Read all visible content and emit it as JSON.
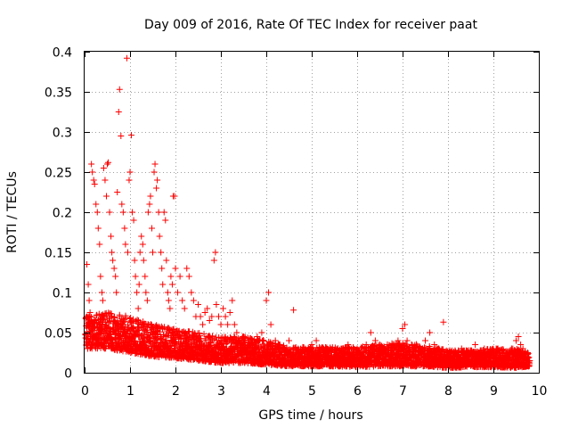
{
  "chart_data": {
    "type": "scatter",
    "title": "Day 009 of 2016, Rate Of TEC Index for receiver paat",
    "xlabel": "GPS time / hours",
    "ylabel": "ROTI / TECUs",
    "xlim": [
      0,
      10
    ],
    "ylim": [
      0,
      0.4
    ],
    "xticks": [
      0,
      1,
      2,
      3,
      4,
      5,
      6,
      7,
      8,
      9,
      10
    ],
    "yticks": [
      0,
      0.05,
      0.1,
      0.15,
      0.2,
      0.25,
      0.3,
      0.35,
      0.4
    ],
    "xtick_labels": [
      "0",
      "1",
      "2",
      "3",
      "4",
      "5",
      "6",
      "7",
      "8",
      "9",
      "10"
    ],
    "ytick_labels": [
      "0",
      "0.05",
      "0.1",
      "0.15",
      "0.2",
      "0.25",
      "0.3",
      "0.35",
      "0.4"
    ],
    "grid": true,
    "marker": "plus",
    "marker_color": "#ff0000",
    "series": [
      {
        "name": "ROTI",
        "points": [
          [
            0.05,
            0.135
          ],
          [
            0.08,
            0.11
          ],
          [
            0.1,
            0.09
          ],
          [
            0.12,
            0.075
          ],
          [
            0.15,
            0.26
          ],
          [
            0.17,
            0.25
          ],
          [
            0.2,
            0.24
          ],
          [
            0.22,
            0.235
          ],
          [
            0.25,
            0.21
          ],
          [
            0.28,
            0.2
          ],
          [
            0.3,
            0.18
          ],
          [
            0.33,
            0.16
          ],
          [
            0.35,
            0.12
          ],
          [
            0.38,
            0.1
          ],
          [
            0.4,
            0.09
          ],
          [
            0.42,
            0.255
          ],
          [
            0.45,
            0.24
          ],
          [
            0.48,
            0.22
          ],
          [
            0.5,
            0.26
          ],
          [
            0.52,
            0.262
          ],
          [
            0.55,
            0.2
          ],
          [
            0.58,
            0.17
          ],
          [
            0.6,
            0.15
          ],
          [
            0.62,
            0.14
          ],
          [
            0.65,
            0.13
          ],
          [
            0.68,
            0.12
          ],
          [
            0.7,
            0.1
          ],
          [
            0.72,
            0.225
          ],
          [
            0.75,
            0.325
          ],
          [
            0.77,
            0.353
          ],
          [
            0.8,
            0.295
          ],
          [
            0.82,
            0.21
          ],
          [
            0.85,
            0.2
          ],
          [
            0.88,
            0.18
          ],
          [
            0.9,
            0.16
          ],
          [
            0.93,
            0.392
          ],
          [
            0.95,
            0.15
          ],
          [
            0.98,
            0.24
          ],
          [
            1.0,
            0.25
          ],
          [
            1.03,
            0.296
          ],
          [
            1.05,
            0.2
          ],
          [
            1.08,
            0.19
          ],
          [
            1.1,
            0.14
          ],
          [
            1.12,
            0.12
          ],
          [
            1.15,
            0.1
          ],
          [
            1.18,
            0.08
          ],
          [
            1.2,
            0.11
          ],
          [
            1.22,
            0.15
          ],
          [
            1.25,
            0.17
          ],
          [
            1.28,
            0.16
          ],
          [
            1.3,
            0.14
          ],
          [
            1.33,
            0.12
          ],
          [
            1.35,
            0.1
          ],
          [
            1.38,
            0.09
          ],
          [
            1.4,
            0.2
          ],
          [
            1.43,
            0.21
          ],
          [
            1.45,
            0.22
          ],
          [
            1.48,
            0.18
          ],
          [
            1.5,
            0.15
          ],
          [
            1.53,
            0.25
          ],
          [
            1.55,
            0.26
          ],
          [
            1.58,
            0.23
          ],
          [
            1.6,
            0.24
          ],
          [
            1.63,
            0.2
          ],
          [
            1.65,
            0.17
          ],
          [
            1.68,
            0.15
          ],
          [
            1.7,
            0.13
          ],
          [
            1.72,
            0.11
          ],
          [
            1.75,
            0.2
          ],
          [
            1.78,
            0.19
          ],
          [
            1.8,
            0.14
          ],
          [
            1.83,
            0.1
          ],
          [
            1.85,
            0.09
          ],
          [
            1.88,
            0.08
          ],
          [
            1.9,
            0.12
          ],
          [
            1.93,
            0.11
          ],
          [
            1.95,
            0.22
          ],
          [
            1.98,
            0.22
          ],
          [
            2.0,
            0.13
          ],
          [
            2.05,
            0.1
          ],
          [
            2.1,
            0.12
          ],
          [
            2.15,
            0.09
          ],
          [
            2.2,
            0.08
          ],
          [
            2.25,
            0.13
          ],
          [
            2.3,
            0.12
          ],
          [
            2.35,
            0.1
          ],
          [
            2.4,
            0.09
          ],
          [
            2.45,
            0.07
          ],
          [
            2.5,
            0.085
          ],
          [
            2.55,
            0.07
          ],
          [
            2.6,
            0.06
          ],
          [
            2.65,
            0.075
          ],
          [
            2.7,
            0.08
          ],
          [
            2.75,
            0.065
          ],
          [
            2.8,
            0.07
          ],
          [
            2.85,
            0.14
          ],
          [
            2.88,
            0.15
          ],
          [
            2.9,
            0.085
          ],
          [
            2.95,
            0.07
          ],
          [
            3.0,
            0.06
          ],
          [
            3.05,
            0.08
          ],
          [
            3.1,
            0.07
          ],
          [
            3.15,
            0.06
          ],
          [
            3.2,
            0.075
          ],
          [
            3.25,
            0.09
          ],
          [
            3.3,
            0.06
          ],
          [
            3.35,
            0.05
          ],
          [
            3.4,
            0.04
          ],
          [
            3.5,
            0.045
          ],
          [
            3.6,
            0.04
          ],
          [
            3.7,
            0.035
          ],
          [
            3.8,
            0.045
          ],
          [
            3.9,
            0.05
          ],
          [
            4.0,
            0.09
          ],
          [
            4.05,
            0.1
          ],
          [
            4.1,
            0.06
          ],
          [
            4.2,
            0.04
          ],
          [
            4.3,
            0.035
          ],
          [
            4.4,
            0.03
          ],
          [
            4.5,
            0.04
          ],
          [
            4.6,
            0.078
          ],
          [
            4.7,
            0.03
          ],
          [
            4.8,
            0.025
          ],
          [
            4.9,
            0.02
          ],
          [
            5.0,
            0.035
          ],
          [
            5.1,
            0.04
          ],
          [
            5.2,
            0.03
          ],
          [
            5.3,
            0.025
          ],
          [
            5.4,
            0.03
          ],
          [
            5.5,
            0.02
          ],
          [
            5.6,
            0.025
          ],
          [
            5.7,
            0.03
          ],
          [
            5.8,
            0.035
          ],
          [
            5.9,
            0.025
          ],
          [
            6.0,
            0.03
          ],
          [
            6.1,
            0.02
          ],
          [
            6.2,
            0.035
          ],
          [
            6.3,
            0.05
          ],
          [
            6.4,
            0.04
          ],
          [
            6.5,
            0.035
          ],
          [
            6.6,
            0.03
          ],
          [
            6.7,
            0.025
          ],
          [
            6.8,
            0.03
          ],
          [
            6.9,
            0.04
          ],
          [
            7.0,
            0.055
          ],
          [
            7.05,
            0.06
          ],
          [
            7.1,
            0.04
          ],
          [
            7.2,
            0.035
          ],
          [
            7.3,
            0.03
          ],
          [
            7.4,
            0.025
          ],
          [
            7.5,
            0.04
          ],
          [
            7.6,
            0.05
          ],
          [
            7.7,
            0.035
          ],
          [
            7.8,
            0.03
          ],
          [
            7.9,
            0.063
          ],
          [
            8.0,
            0.025
          ],
          [
            8.1,
            0.02
          ],
          [
            8.2,
            0.025
          ],
          [
            8.3,
            0.03
          ],
          [
            8.4,
            0.02
          ],
          [
            8.5,
            0.025
          ],
          [
            8.6,
            0.035
          ],
          [
            8.7,
            0.025
          ],
          [
            8.8,
            0.03
          ],
          [
            8.9,
            0.02
          ],
          [
            9.0,
            0.025
          ],
          [
            9.1,
            0.03
          ],
          [
            9.2,
            0.025
          ],
          [
            9.3,
            0.02
          ],
          [
            9.4,
            0.03
          ],
          [
            9.5,
            0.04
          ],
          [
            9.55,
            0.045
          ],
          [
            9.6,
            0.035
          ],
          [
            9.65,
            0.03
          ],
          [
            9.7,
            0.025
          ],
          [
            9.75,
            0.02
          ],
          [
            9.8,
            0.015
          ]
        ]
      }
    ],
    "density_envelope": {
      "x": [
        0.0,
        0.5,
        1.0,
        1.5,
        2.0,
        2.5,
        3.0,
        3.5,
        4.0,
        4.5,
        5.0,
        5.5,
        6.0,
        6.5,
        7.0,
        7.5,
        8.0,
        8.5,
        9.0,
        9.5,
        9.8
      ],
      "low": [
        0.03,
        0.03,
        0.025,
        0.02,
        0.018,
        0.015,
        0.012,
        0.012,
        0.01,
        0.008,
        0.008,
        0.008,
        0.007,
        0.008,
        0.008,
        0.008,
        0.006,
        0.007,
        0.007,
        0.006,
        0.008
      ],
      "high": [
        0.07,
        0.075,
        0.07,
        0.06,
        0.055,
        0.05,
        0.045,
        0.045,
        0.04,
        0.032,
        0.032,
        0.032,
        0.032,
        0.035,
        0.038,
        0.034,
        0.028,
        0.028,
        0.03,
        0.03,
        0.025
      ]
    }
  }
}
